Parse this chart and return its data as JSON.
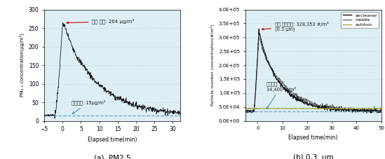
{
  "left_chart": {
    "xlabel": "Elapsed time(min)",
    "ylabel": "PM₂.₅ concentration(μg/m³)",
    "xlim": [
      -5,
      32
    ],
    "ylim": [
      0,
      300
    ],
    "xticks": [
      -5,
      0,
      5,
      10,
      15,
      20,
      25,
      30
    ],
    "yticks": [
      0,
      50,
      100,
      150,
      200,
      250,
      300
    ],
    "background_level": 15,
    "peak_value": 264,
    "peak_label": "최대 농도: 264 μg/m³",
    "bg_label": "배경농도: 15μg/m³",
    "caption": "(a)  PM2.5"
  },
  "right_chart": {
    "xlabel": "Elapsed time(min)",
    "ylabel": "Particle number concentration(#/m³)",
    "xlim": [
      -5,
      50
    ],
    "ylim": [
      0,
      400000
    ],
    "xticks": [
      0,
      10,
      20,
      30,
      40,
      50
    ],
    "ytick_labels": [
      "0.0E+00",
      "5.0E+04",
      "1.0E+05",
      "1.5E+05",
      "2.0E+05",
      "2.5E+05",
      "3.0E+05",
      "3.5E+05",
      "4.0E+05"
    ],
    "ytick_values": [
      0,
      50000,
      100000,
      150000,
      200000,
      250000,
      300000,
      350000,
      400000
    ],
    "background_level": 34400,
    "peak_value": 328353,
    "peak_label": "최대 개수농도: 328,353 #/m³\n(0.3 μm)",
    "bg_label": "배경농도:\n34,400 #/m³",
    "caption": "(b) 0,3  μm",
    "legend": [
      "aircleaner",
      "middle",
      "outdoor"
    ],
    "legend_colors": [
      "#111111",
      "#666666",
      "#aaaa44"
    ]
  },
  "bg_color": "#ddeef5",
  "line_color_left": "#111111",
  "dashed_color": "#5599bb",
  "annotation_arrow_color": "#cc2222",
  "grid_color": "#aaccdd",
  "outdoor_color": "#aaaa55"
}
